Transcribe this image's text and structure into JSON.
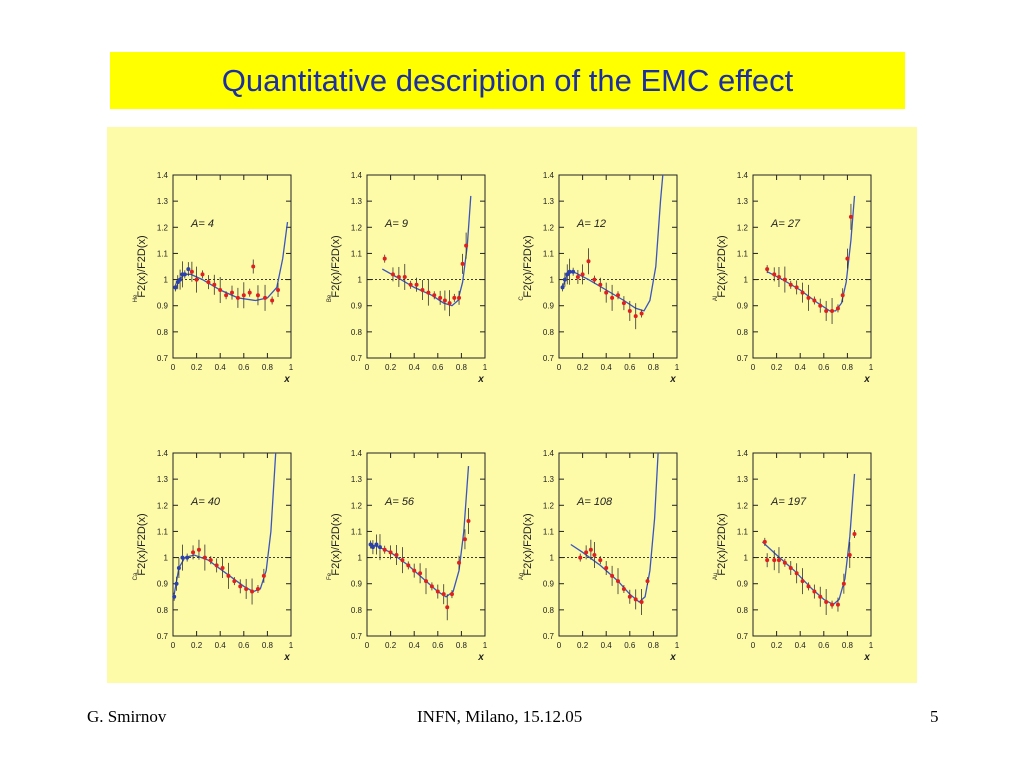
{
  "slide": {
    "title": "Quantitative description of the EMC effect",
    "footer_author": "G. Smirnov",
    "footer_venue": "INFN, Milano, 15.12.05",
    "page_number": "5"
  },
  "colors": {
    "title_background": "#ffff00",
    "title_text": "#1c2fa0",
    "figure_background": "#fdfaa8",
    "curve": "#3a55c0",
    "data_red": "#e02020",
    "data_blue": "#2a40b0"
  },
  "chart_data": [
    {
      "type": "scatter",
      "label": "A= 4",
      "ylabel_nucleus": "He",
      "x_ticks": [
        "0",
        "0.2",
        "0.4",
        "0.6",
        "0.8",
        "1"
      ],
      "xlabel": "x",
      "y_ticks": [
        "0.7",
        "0.8",
        "0.9",
        "1",
        "1.1",
        "1.2",
        "1.3",
        "1.4"
      ],
      "ylabel": "F2(x)/F2D(x)",
      "xlim": [
        0,
        1.0
      ],
      "ylim": [
        0.7,
        1.4
      ],
      "reference_line": 1.0,
      "points": [
        [
          0.02,
          0.97
        ],
        [
          0.04,
          0.99
        ],
        [
          0.06,
          1.0
        ],
        [
          0.08,
          1.02
        ],
        [
          0.1,
          1.02
        ],
        [
          0.13,
          1.04
        ],
        [
          0.16,
          1.03
        ],
        [
          0.2,
          1.0
        ],
        [
          0.25,
          1.02
        ],
        [
          0.3,
          0.99
        ],
        [
          0.35,
          0.98
        ],
        [
          0.4,
          0.96
        ],
        [
          0.45,
          0.94
        ],
        [
          0.5,
          0.95
        ],
        [
          0.55,
          0.93
        ],
        [
          0.6,
          0.94
        ],
        [
          0.65,
          0.95
        ],
        [
          0.68,
          1.05
        ],
        [
          0.72,
          0.94
        ],
        [
          0.78,
          0.93
        ],
        [
          0.84,
          0.92
        ],
        [
          0.89,
          0.96
        ]
      ],
      "curve": [
        [
          0.02,
          0.96
        ],
        [
          0.05,
          1.0
        ],
        [
          0.1,
          1.02
        ],
        [
          0.15,
          1.02
        ],
        [
          0.25,
          1.0
        ],
        [
          0.4,
          0.96
        ],
        [
          0.55,
          0.93
        ],
        [
          0.7,
          0.92
        ],
        [
          0.8,
          0.93
        ],
        [
          0.88,
          0.97
        ],
        [
          0.93,
          1.08
        ],
        [
          0.97,
          1.22
        ]
      ]
    },
    {
      "type": "scatter",
      "label": "A= 9",
      "ylabel_nucleus": "Be",
      "x_ticks": [
        "0",
        "0.2",
        "0.4",
        "0.6",
        "0.8",
        "1"
      ],
      "xlabel": "x",
      "y_ticks": [
        "0.7",
        "0.8",
        "0.9",
        "1",
        "1.1",
        "1.2",
        "1.3",
        "1.4"
      ],
      "ylabel": "F2(x)/F2D(x)",
      "xlim": [
        0,
        1.0
      ],
      "ylim": [
        0.7,
        1.4
      ],
      "reference_line": 1.0,
      "points": [
        [
          0.15,
          1.08
        ],
        [
          0.22,
          1.02
        ],
        [
          0.27,
          1.01
        ],
        [
          0.32,
          1.01
        ],
        [
          0.37,
          0.98
        ],
        [
          0.42,
          0.98
        ],
        [
          0.47,
          0.96
        ],
        [
          0.52,
          0.95
        ],
        [
          0.57,
          0.94
        ],
        [
          0.62,
          0.93
        ],
        [
          0.66,
          0.92
        ],
        [
          0.7,
          0.91
        ],
        [
          0.74,
          0.93
        ],
        [
          0.78,
          0.93
        ],
        [
          0.81,
          1.06
        ],
        [
          0.84,
          1.13
        ]
      ],
      "curve": [
        [
          0.13,
          1.04
        ],
        [
          0.25,
          1.01
        ],
        [
          0.4,
          0.97
        ],
        [
          0.55,
          0.94
        ],
        [
          0.65,
          0.91
        ],
        [
          0.72,
          0.9
        ],
        [
          0.77,
          0.92
        ],
        [
          0.81,
          0.99
        ],
        [
          0.85,
          1.13
        ],
        [
          0.88,
          1.32
        ]
      ]
    },
    {
      "type": "scatter",
      "label": "A= 12",
      "ylabel_nucleus": "C",
      "x_ticks": [
        "0",
        "0.2",
        "0.4",
        "0.6",
        "0.8",
        "1"
      ],
      "xlabel": "x",
      "y_ticks": [
        "0.7",
        "0.8",
        "0.9",
        "1",
        "1.1",
        "1.2",
        "1.3",
        "1.4"
      ],
      "ylabel": "F2(x)/F2D(x)",
      "xlim": [
        0,
        1.0
      ],
      "ylim": [
        0.7,
        1.4
      ],
      "reference_line": 1.0,
      "points": [
        [
          0.03,
          0.97
        ],
        [
          0.05,
          1.0
        ],
        [
          0.07,
          1.02
        ],
        [
          0.09,
          1.03
        ],
        [
          0.12,
          1.03
        ],
        [
          0.16,
          1.01
        ],
        [
          0.2,
          1.02
        ],
        [
          0.25,
          1.07
        ],
        [
          0.3,
          1.0
        ],
        [
          0.35,
          0.98
        ],
        [
          0.4,
          0.95
        ],
        [
          0.45,
          0.93
        ],
        [
          0.5,
          0.94
        ],
        [
          0.55,
          0.91
        ],
        [
          0.6,
          0.88
        ],
        [
          0.65,
          0.86
        ],
        [
          0.7,
          0.87
        ]
      ],
      "curve": [
        [
          0.03,
          0.97
        ],
        [
          0.07,
          1.02
        ],
        [
          0.12,
          1.03
        ],
        [
          0.25,
          1.0
        ],
        [
          0.4,
          0.96
        ],
        [
          0.55,
          0.92
        ],
        [
          0.65,
          0.89
        ],
        [
          0.72,
          0.88
        ],
        [
          0.77,
          0.92
        ],
        [
          0.82,
          1.05
        ],
        [
          0.86,
          1.3
        ],
        [
          0.88,
          1.4
        ]
      ]
    },
    {
      "type": "scatter",
      "label": "A= 27",
      "ylabel_nucleus": "Al",
      "x_ticks": [
        "0",
        "0.2",
        "0.4",
        "0.6",
        "0.8",
        "1"
      ],
      "xlabel": "x",
      "y_ticks": [
        "0.7",
        "0.8",
        "0.9",
        "1",
        "1.1",
        "1.2",
        "1.3",
        "1.4"
      ],
      "ylabel": "F2(x)/F2D(x)",
      "xlim": [
        0,
        1.0
      ],
      "ylim": [
        0.7,
        1.4
      ],
      "reference_line": 1.0,
      "points": [
        [
          0.12,
          1.04
        ],
        [
          0.18,
          1.02
        ],
        [
          0.22,
          1.01
        ],
        [
          0.27,
          1.0
        ],
        [
          0.32,
          0.98
        ],
        [
          0.37,
          0.97
        ],
        [
          0.42,
          0.95
        ],
        [
          0.47,
          0.93
        ],
        [
          0.52,
          0.92
        ],
        [
          0.57,
          0.9
        ],
        [
          0.62,
          0.88
        ],
        [
          0.67,
          0.88
        ],
        [
          0.72,
          0.89
        ],
        [
          0.76,
          0.94
        ],
        [
          0.8,
          1.08
        ],
        [
          0.83,
          1.24
        ]
      ],
      "curve": [
        [
          0.12,
          1.03
        ],
        [
          0.25,
          1.0
        ],
        [
          0.4,
          0.96
        ],
        [
          0.55,
          0.91
        ],
        [
          0.65,
          0.88
        ],
        [
          0.7,
          0.88
        ],
        [
          0.75,
          0.91
        ],
        [
          0.79,
          0.99
        ],
        [
          0.83,
          1.15
        ],
        [
          0.86,
          1.32
        ]
      ]
    },
    {
      "type": "scatter",
      "label": "A= 40",
      "ylabel_nucleus": "Ca",
      "x_ticks": [
        "0",
        "0.2",
        "0.4",
        "0.6",
        "0.8",
        "1"
      ],
      "xlabel": "x",
      "y_ticks": [
        "0.7",
        "0.8",
        "0.9",
        "1",
        "1.1",
        "1.2",
        "1.3",
        "1.4"
      ],
      "ylabel": "F2(x)/F2D(x)",
      "xlim": [
        0,
        1.0
      ],
      "ylim": [
        0.7,
        1.4
      ],
      "reference_line": 1.0,
      "points": [
        [
          0.01,
          0.85
        ],
        [
          0.03,
          0.9
        ],
        [
          0.05,
          0.96
        ],
        [
          0.08,
          1.0
        ],
        [
          0.12,
          1.0
        ],
        [
          0.17,
          1.02
        ],
        [
          0.22,
          1.03
        ],
        [
          0.27,
          1.0
        ],
        [
          0.32,
          0.99
        ],
        [
          0.37,
          0.97
        ],
        [
          0.42,
          0.96
        ],
        [
          0.47,
          0.93
        ],
        [
          0.52,
          0.91
        ],
        [
          0.57,
          0.89
        ],
        [
          0.62,
          0.88
        ],
        [
          0.67,
          0.87
        ],
        [
          0.72,
          0.88
        ],
        [
          0.77,
          0.93
        ]
      ],
      "curve": [
        [
          0.01,
          0.86
        ],
        [
          0.05,
          0.96
        ],
        [
          0.1,
          1.0
        ],
        [
          0.18,
          1.01
        ],
        [
          0.3,
          0.99
        ],
        [
          0.45,
          0.94
        ],
        [
          0.6,
          0.89
        ],
        [
          0.68,
          0.87
        ],
        [
          0.74,
          0.88
        ],
        [
          0.79,
          0.95
        ],
        [
          0.83,
          1.1
        ],
        [
          0.87,
          1.4
        ]
      ]
    },
    {
      "type": "scatter",
      "label": "A= 56",
      "ylabel_nucleus": "Fe",
      "x_ticks": [
        "0",
        "0.2",
        "0.4",
        "0.6",
        "0.8",
        "1"
      ],
      "xlabel": "x",
      "y_ticks": [
        "0.7",
        "0.8",
        "0.9",
        "1",
        "1.1",
        "1.2",
        "1.3",
        "1.4"
      ],
      "ylabel": "F2(x)/F2D(x)",
      "xlim": [
        0,
        1.0
      ],
      "ylim": [
        0.7,
        1.4
      ],
      "reference_line": 1.0,
      "points": [
        [
          0.03,
          1.05
        ],
        [
          0.05,
          1.04
        ],
        [
          0.08,
          1.05
        ],
        [
          0.11,
          1.04
        ],
        [
          0.15,
          1.03
        ],
        [
          0.2,
          1.02
        ],
        [
          0.25,
          1.01
        ],
        [
          0.3,
          0.99
        ],
        [
          0.35,
          0.97
        ],
        [
          0.4,
          0.95
        ],
        [
          0.45,
          0.94
        ],
        [
          0.5,
          0.91
        ],
        [
          0.55,
          0.89
        ],
        [
          0.6,
          0.87
        ],
        [
          0.65,
          0.86
        ],
        [
          0.68,
          0.81
        ],
        [
          0.72,
          0.86
        ],
        [
          0.78,
          0.98
        ],
        [
          0.83,
          1.07
        ],
        [
          0.86,
          1.14
        ]
      ],
      "curve": [
        [
          0.03,
          1.05
        ],
        [
          0.1,
          1.04
        ],
        [
          0.2,
          1.02
        ],
        [
          0.35,
          0.97
        ],
        [
          0.5,
          0.91
        ],
        [
          0.6,
          0.87
        ],
        [
          0.67,
          0.85
        ],
        [
          0.73,
          0.87
        ],
        [
          0.78,
          0.95
        ],
        [
          0.82,
          1.1
        ],
        [
          0.86,
          1.35
        ]
      ]
    },
    {
      "type": "scatter",
      "label": "A= 108",
      "ylabel_nucleus": "Ag",
      "x_ticks": [
        "0",
        "0.2",
        "0.4",
        "0.6",
        "0.8",
        "1"
      ],
      "xlabel": "x",
      "y_ticks": [
        "0.7",
        "0.8",
        "0.9",
        "1",
        "1.1",
        "1.2",
        "1.3",
        "1.4"
      ],
      "ylabel": "F2(x)/F2D(x)",
      "xlim": [
        0,
        1.0
      ],
      "ylim": [
        0.7,
        1.4
      ],
      "reference_line": 1.0,
      "points": [
        [
          0.18,
          1.0
        ],
        [
          0.23,
          1.02
        ],
        [
          0.27,
          1.03
        ],
        [
          0.3,
          1.01
        ],
        [
          0.35,
          0.99
        ],
        [
          0.4,
          0.96
        ],
        [
          0.45,
          0.93
        ],
        [
          0.5,
          0.91
        ],
        [
          0.55,
          0.88
        ],
        [
          0.6,
          0.85
        ],
        [
          0.65,
          0.84
        ],
        [
          0.7,
          0.83
        ],
        [
          0.75,
          0.91
        ]
      ],
      "curve": [
        [
          0.1,
          1.05
        ],
        [
          0.2,
          1.02
        ],
        [
          0.35,
          0.97
        ],
        [
          0.5,
          0.91
        ],
        [
          0.6,
          0.86
        ],
        [
          0.68,
          0.83
        ],
        [
          0.73,
          0.85
        ],
        [
          0.77,
          0.95
        ],
        [
          0.81,
          1.15
        ],
        [
          0.84,
          1.4
        ]
      ]
    },
    {
      "type": "scatter",
      "label": "A= 197",
      "ylabel_nucleus": "Au",
      "x_ticks": [
        "0",
        "0.2",
        "0.4",
        "0.6",
        "0.8",
        "1"
      ],
      "xlabel": "x",
      "y_ticks": [
        "0.7",
        "0.8",
        "0.9",
        "1",
        "1.1",
        "1.2",
        "1.3",
        "1.4"
      ],
      "ylabel": "F2(x)/F2D(x)",
      "xlim": [
        0,
        1.0
      ],
      "ylim": [
        0.7,
        1.4
      ],
      "reference_line": 1.0,
      "points": [
        [
          0.1,
          1.06
        ],
        [
          0.12,
          0.99
        ],
        [
          0.18,
          0.99
        ],
        [
          0.22,
          0.99
        ],
        [
          0.27,
          0.98
        ],
        [
          0.32,
          0.96
        ],
        [
          0.37,
          0.94
        ],
        [
          0.42,
          0.91
        ],
        [
          0.47,
          0.89
        ],
        [
          0.52,
          0.87
        ],
        [
          0.57,
          0.85
        ],
        [
          0.62,
          0.83
        ],
        [
          0.67,
          0.82
        ],
        [
          0.72,
          0.82
        ],
        [
          0.77,
          0.9
        ],
        [
          0.82,
          1.01
        ],
        [
          0.86,
          1.09
        ]
      ],
      "curve": [
        [
          0.08,
          1.06
        ],
        [
          0.2,
          1.01
        ],
        [
          0.35,
          0.95
        ],
        [
          0.5,
          0.88
        ],
        [
          0.6,
          0.84
        ],
        [
          0.68,
          0.82
        ],
        [
          0.73,
          0.84
        ],
        [
          0.78,
          0.92
        ],
        [
          0.82,
          1.08
        ],
        [
          0.86,
          1.32
        ]
      ]
    }
  ]
}
